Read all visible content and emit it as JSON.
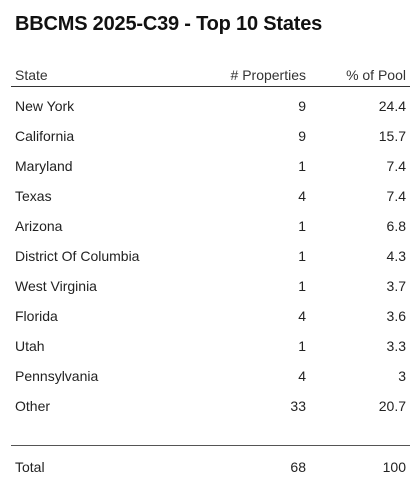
{
  "title": "BBCMS 2025-C39 - Top 10 States",
  "table": {
    "headers": {
      "state": "State",
      "properties": "# Properties",
      "pool": "% of Pool"
    },
    "rows": [
      {
        "state": "New York",
        "properties": "9",
        "pool": "24.4"
      },
      {
        "state": "California",
        "properties": "9",
        "pool": "15.7"
      },
      {
        "state": "Maryland",
        "properties": "1",
        "pool": "7.4"
      },
      {
        "state": "Texas",
        "properties": "4",
        "pool": "7.4"
      },
      {
        "state": "Arizona",
        "properties": "1",
        "pool": "6.8"
      },
      {
        "state": "District Of Columbia",
        "properties": "1",
        "pool": "4.3"
      },
      {
        "state": "West Virginia",
        "properties": "1",
        "pool": "3.7"
      },
      {
        "state": "Florida",
        "properties": "4",
        "pool": "3.6"
      },
      {
        "state": "Utah",
        "properties": "1",
        "pool": "3.3"
      },
      {
        "state": "Pennsylvania",
        "properties": "4",
        "pool": "3"
      },
      {
        "state": "Other",
        "properties": "33",
        "pool": "20.7"
      }
    ],
    "total": {
      "label": "Total",
      "properties": "68",
      "pool": "100"
    }
  }
}
